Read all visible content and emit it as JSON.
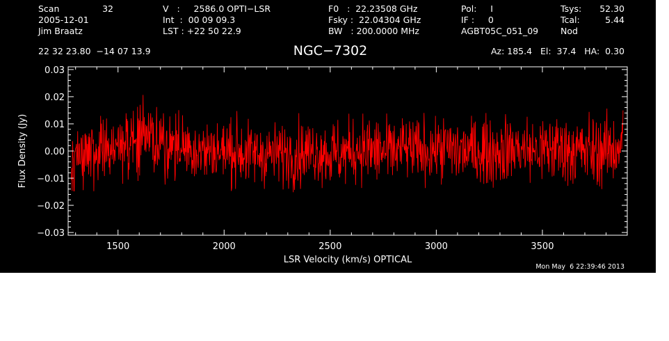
{
  "header": {
    "scan_label": "Scan",
    "scan_value": "32",
    "date": "2005-12-01",
    "observer": "Jim Braatz",
    "v_line": "V   :     2586.0 OPTI−LSR",
    "int_line": "Int  :  00 09 09.3",
    "lst_line": "LST : +22 50 22.9",
    "f0_line": "F0   :  22.23508 GHz",
    "fsky_line": "Fsky :  22.04304 GHz",
    "bw_line": "BW   : 200.0000 MHz",
    "pol_line": "Pol:     I",
    "if_line": "IF :     0",
    "project": "AGBT05C_051_09",
    "tsys_label": "Tsys:",
    "tsys_value": "52.30",
    "tcal_label": "Tcal:",
    "tcal_value": "5.44",
    "mode": "Nod",
    "coords": "22 32 23.80  −14 07 13.9",
    "az_line": "Az: 185.4   El:  37.4   HA:  0.30"
  },
  "timestamp": "Mon May  6 22:39:46 2013",
  "chart_data": {
    "type": "line",
    "title": "NGC−7302",
    "xlabel": "LSR Velocity (km/s) OPTICAL",
    "ylabel": "Flux Density (Jy)",
    "xlim": [
      1265,
      3900
    ],
    "ylim": [
      -0.031,
      0.031
    ],
    "x_ticks": [
      1500,
      2000,
      2500,
      3000,
      3500
    ],
    "x_tick_labels": [
      "1500",
      "2000",
      "2500",
      "3000",
      "3500"
    ],
    "y_ticks": [
      -0.03,
      -0.02,
      -0.01,
      0.0,
      0.01,
      0.02,
      0.03
    ],
    "y_tick_labels": [
      "−0.03",
      "−0.02",
      "−0.01",
      "0.00",
      "0.01",
      "0.02",
      "0.03"
    ],
    "grid": false,
    "series_color": "#ff0000",
    "axis_color": "#ffffff",
    "background": "#000000",
    "series": [
      {
        "x": [
          1280,
          1300,
          1350,
          1400,
          1450,
          1500,
          1550,
          1600,
          1650,
          1700,
          1750,
          1800,
          1850,
          1900,
          1950,
          2000,
          2050,
          2100,
          2150,
          2200,
          2250,
          2300,
          2350,
          2400,
          2450,
          2500,
          2550,
          2600,
          2650,
          2700,
          2750,
          2800,
          2850,
          2900,
          2950,
          3000,
          3050,
          3100,
          3150,
          3200,
          3250,
          3300,
          3350,
          3400,
          3450,
          3500,
          3550,
          3600,
          3650,
          3700,
          3750,
          3800,
          3850,
          3880
        ],
        "center": [
          -0.008,
          -0.004,
          -0.002,
          0.0,
          0.002,
          0.003,
          0.004,
          0.004,
          0.003,
          0.003,
          0.002,
          0.002,
          0.001,
          0.0,
          0.0,
          0.0,
          0.0,
          -0.001,
          -0.001,
          -0.001,
          -0.001,
          -0.001,
          -0.001,
          0.0,
          0.0,
          -0.001,
          -0.001,
          0.0,
          0.001,
          0.0,
          0.0,
          0.0,
          0.001,
          0.0,
          0.0,
          0.001,
          0.001,
          0.0,
          0.0,
          0.0,
          0.0,
          0.0,
          0.001,
          0.001,
          0.0,
          0.0,
          0.001,
          0.001,
          0.0,
          0.0,
          0.0,
          0.0,
          0.001,
          0.004
        ],
        "high": [
          0.006,
          0.012,
          0.015,
          0.017,
          0.019,
          0.019,
          0.021,
          0.023,
          0.02,
          0.019,
          0.017,
          0.018,
          0.016,
          0.015,
          0.015,
          0.014,
          0.015,
          0.014,
          0.013,
          0.014,
          0.013,
          0.014,
          0.015,
          0.015,
          0.014,
          0.016,
          0.015,
          0.015,
          0.017,
          0.018,
          0.016,
          0.015,
          0.016,
          0.015,
          0.014,
          0.015,
          0.016,
          0.017,
          0.015,
          0.016,
          0.018,
          0.017,
          0.016,
          0.016,
          0.017,
          0.018,
          0.017,
          0.019,
          0.027,
          0.019,
          0.017,
          0.016,
          0.017,
          0.018
        ],
        "low": [
          -0.025,
          -0.024,
          -0.02,
          -0.017,
          -0.015,
          -0.013,
          -0.014,
          -0.017,
          -0.02,
          -0.016,
          -0.017,
          -0.019,
          -0.018,
          -0.019,
          -0.021,
          -0.024,
          -0.019,
          -0.02,
          -0.023,
          -0.019,
          -0.018,
          -0.017,
          -0.02,
          -0.018,
          -0.02,
          -0.02,
          -0.019,
          -0.018,
          -0.017,
          -0.018,
          -0.017,
          -0.019,
          -0.018,
          -0.017,
          -0.016,
          -0.018,
          -0.017,
          -0.016,
          -0.017,
          -0.016,
          -0.015,
          -0.016,
          -0.017,
          -0.016,
          -0.015,
          -0.016,
          -0.017,
          -0.016,
          -0.017,
          -0.016,
          -0.017,
          -0.023,
          -0.019,
          -0.016
        ]
      }
    ]
  }
}
